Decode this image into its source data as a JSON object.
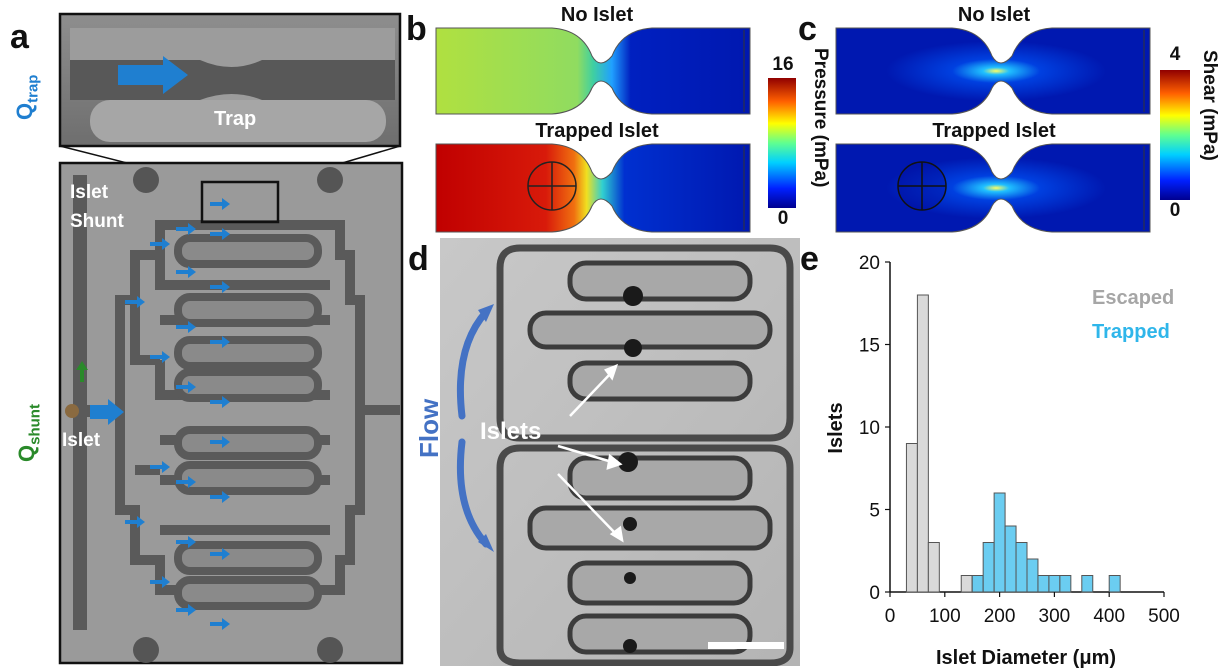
{
  "panels": {
    "a": {
      "letter": "a",
      "q_trap_main": "Q",
      "q_trap_sub": "trap",
      "trap_label": "Trap",
      "islet_shunt_line1": "Islet",
      "islet_shunt_line2": "Shunt",
      "q_shunt_main": "Q",
      "q_shunt_sub": "shunt",
      "islet_label": "Islet"
    },
    "b": {
      "letter": "b",
      "top_title": "No Islet",
      "bottom_title": "Trapped Islet",
      "colorbar_max": "16",
      "colorbar_min": "0",
      "colorbar_label": "Pressure (mPa)"
    },
    "c": {
      "letter": "c",
      "top_title": "No Islet",
      "bottom_title": "Trapped Islet",
      "colorbar_max": "4",
      "colorbar_min": "0",
      "colorbar_label": "Shear (mPa)"
    },
    "d": {
      "letter": "d",
      "flow_label": "Flow",
      "islets_label": "Islets"
    },
    "e": {
      "letter": "e"
    }
  },
  "colors": {
    "blue_arrow": "#1f7fd0",
    "green_arrow": "#2a8a2a",
    "flow_blue": "#4472c4",
    "escaped_gray": "#d9d9d9",
    "trapped_cyan": "#5bc8f0",
    "escaped_text": "#a6a6a6",
    "trapped_text": "#2fb6ea"
  },
  "chart_data": {
    "type": "bar",
    "xlabel": "Islet Diameter (μm)",
    "ylabel": "Islets",
    "xlim": [
      0,
      500
    ],
    "ylim": [
      0,
      20
    ],
    "xticks": [
      0,
      100,
      200,
      300,
      400,
      500
    ],
    "yticks": [
      0,
      5,
      10,
      15,
      20
    ],
    "bin_width": 20,
    "legend": [
      "Escaped",
      "Trapped"
    ],
    "legend_position": "top-right",
    "series": [
      {
        "name": "Escaped",
        "bins": [
          {
            "x0": 30,
            "x1": 50,
            "value": 9
          },
          {
            "x0": 50,
            "x1": 70,
            "value": 18
          },
          {
            "x0": 70,
            "x1": 90,
            "value": 3
          },
          {
            "x0": 130,
            "x1": 150,
            "value": 1
          },
          {
            "x0": 150,
            "x1": 170,
            "value": 1
          }
        ]
      },
      {
        "name": "Trapped",
        "bins": [
          {
            "x0": 150,
            "x1": 170,
            "value": 1
          },
          {
            "x0": 170,
            "x1": 190,
            "value": 3
          },
          {
            "x0": 190,
            "x1": 210,
            "value": 6
          },
          {
            "x0": 210,
            "x1": 230,
            "value": 4
          },
          {
            "x0": 230,
            "x1": 250,
            "value": 3
          },
          {
            "x0": 250,
            "x1": 270,
            "value": 2
          },
          {
            "x0": 270,
            "x1": 290,
            "value": 1
          },
          {
            "x0": 290,
            "x1": 310,
            "value": 1
          },
          {
            "x0": 310,
            "x1": 330,
            "value": 1
          },
          {
            "x0": 350,
            "x1": 370,
            "value": 1
          },
          {
            "x0": 400,
            "x1": 420,
            "value": 1
          }
        ]
      }
    ]
  }
}
